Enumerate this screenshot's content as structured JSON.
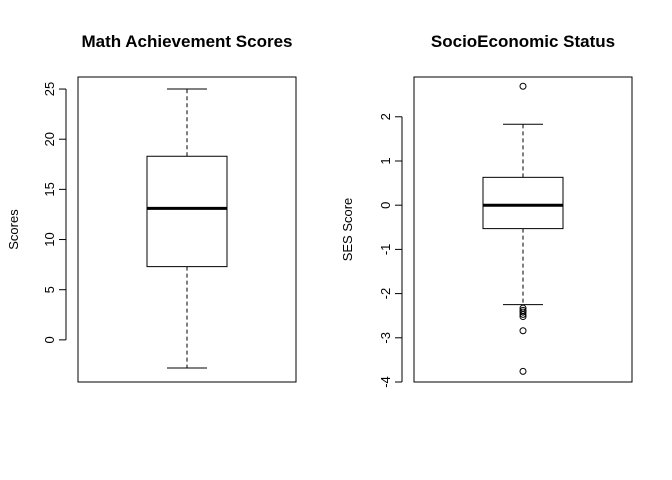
{
  "chart_data": [
    {
      "type": "boxplot",
      "title": "Math Achievement Scores",
      "ylabel": "Scores",
      "xlabel": "",
      "ylim": [
        -4.2,
        26.2
      ],
      "yticks": [
        0,
        5,
        10,
        15,
        20,
        25
      ],
      "ytick_labels": [
        "0",
        "5",
        "10",
        "15",
        "20",
        "25"
      ],
      "stats": {
        "lower_whisker": -2.8,
        "q1": 7.3,
        "median": 13.1,
        "q3": 18.3,
        "upper_whisker": 25.0
      },
      "outliers": []
    },
    {
      "type": "boxplot",
      "title": "SocioEconomic Status",
      "ylabel": "SES Score",
      "xlabel": "",
      "ylim": [
        -4.0,
        2.9
      ],
      "yticks": [
        -4,
        -3,
        -2,
        -1,
        0,
        1,
        2
      ],
      "ytick_labels": [
        "-4",
        "-3",
        "-2",
        "-1",
        "0",
        "1",
        "2"
      ],
      "stats": {
        "lower_whisker": -2.25,
        "q1": -0.53,
        "median": 0.0,
        "q3": 0.63,
        "upper_whisker": 1.83
      },
      "outliers": [
        2.69,
        -2.33,
        -2.38,
        -2.42,
        -2.47,
        -2.52,
        -2.84,
        -3.76
      ]
    }
  ]
}
